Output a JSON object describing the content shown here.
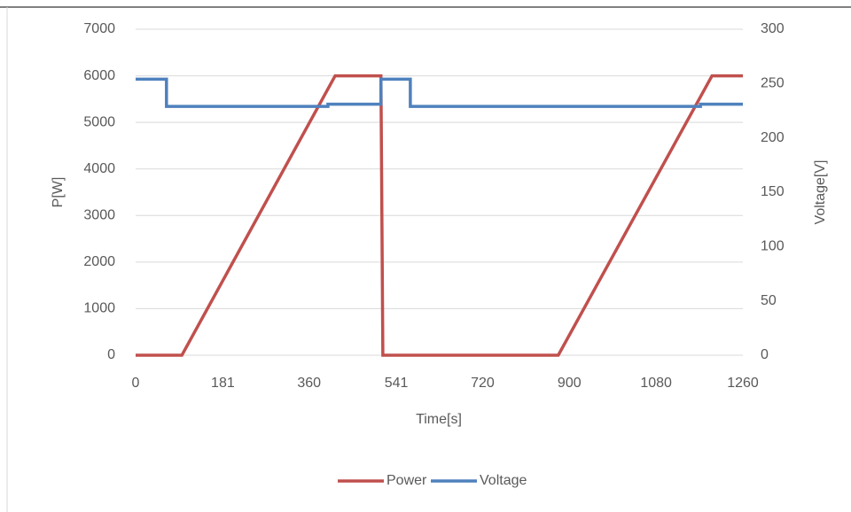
{
  "chart_data": {
    "type": "line",
    "xlabel": "Time[s]",
    "ylabel": "P[W]",
    "y2label": "Voltage[V]",
    "xlim": [
      0,
      1260
    ],
    "xticks": [
      0,
      181,
      360,
      541,
      720,
      900,
      1080,
      1260
    ],
    "ylim": [
      0,
      7000
    ],
    "yticks": [
      0,
      1000,
      2000,
      3000,
      4000,
      5000,
      6000,
      7000
    ],
    "y2lim": [
      0,
      300
    ],
    "y2ticks": [
      0,
      50,
      100,
      150,
      200,
      250,
      300
    ],
    "grid": true,
    "legend": "bottom",
    "series": [
      {
        "name": "Power",
        "color": "#c0504d",
        "x": [
          0,
          96,
          414,
          509,
          513,
          877,
          1196,
          1260
        ],
        "values": [
          0,
          0,
          6000,
          6000,
          0,
          0,
          6000,
          6000
        ]
      },
      {
        "name": "Voltage",
        "color": "#4f81bd",
        "axis": "y2",
        "x": [
          0,
          64,
          64,
          399,
          399,
          509,
          509,
          570,
          570,
          1172,
          1172,
          1260
        ],
        "values": [
          254,
          254,
          229,
          229,
          231,
          231,
          254,
          254,
          229,
          229,
          231,
          231
        ]
      }
    ]
  }
}
